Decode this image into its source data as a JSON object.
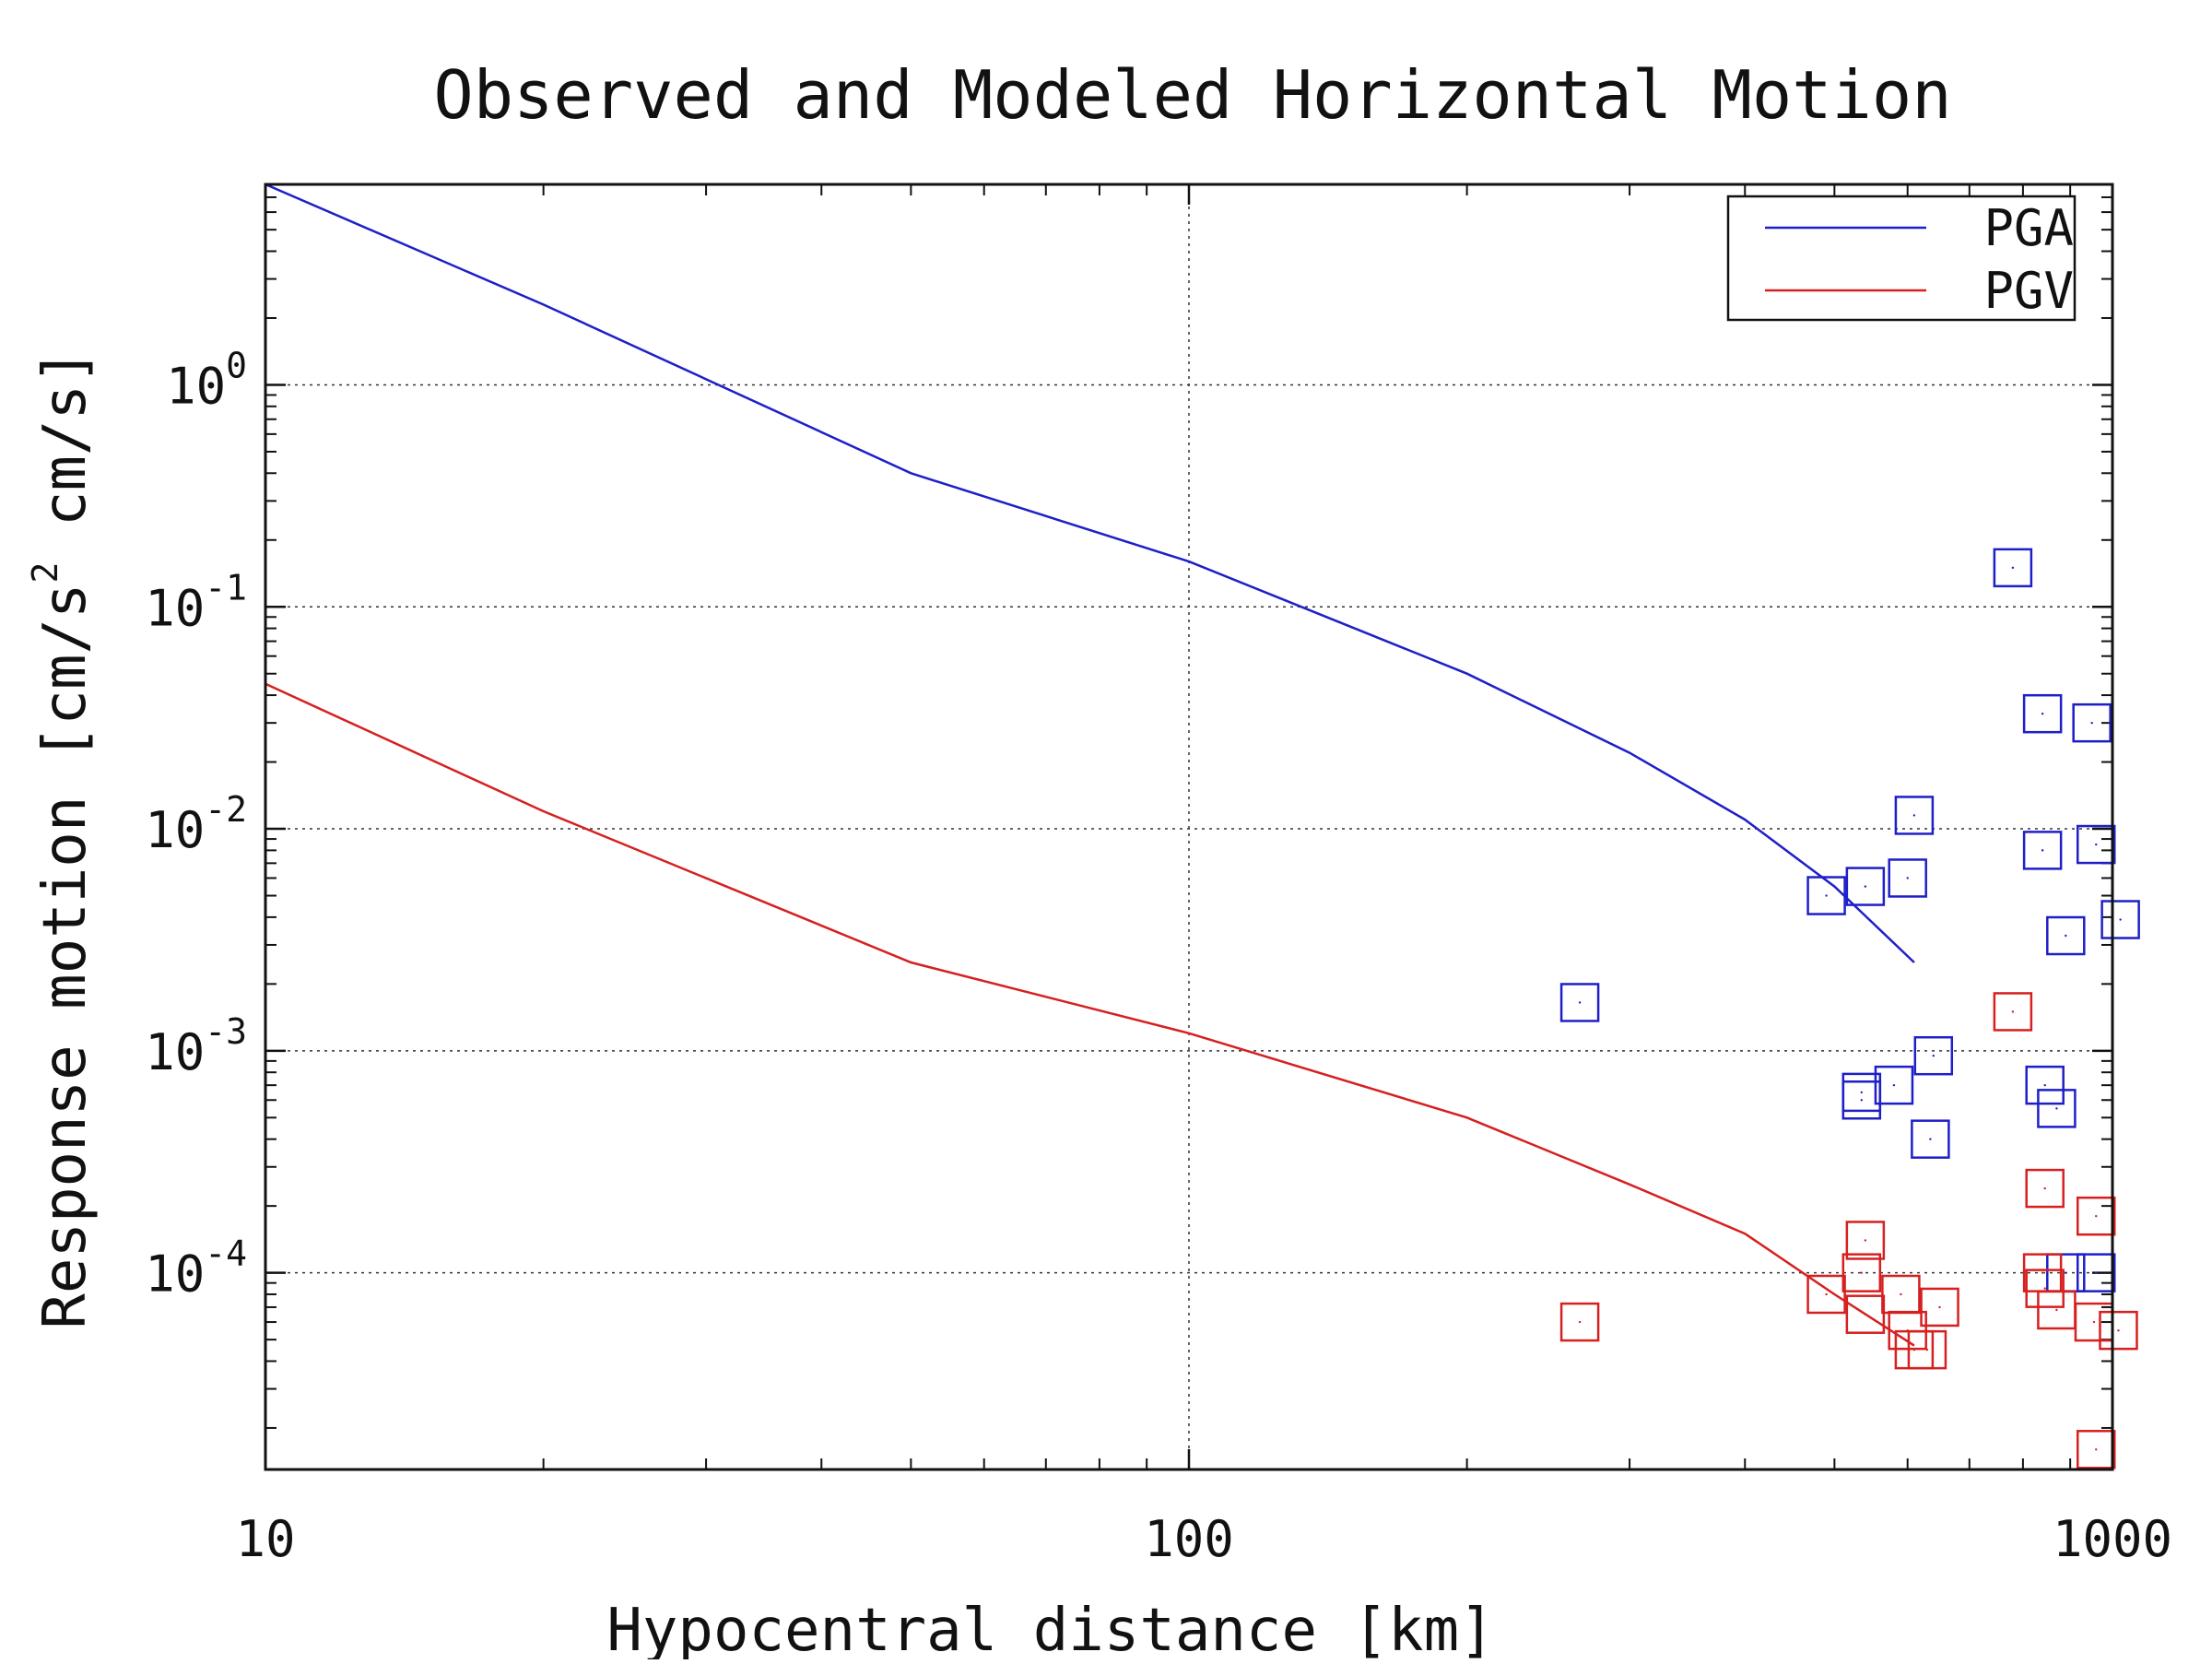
{
  "chart_data": {
    "type": "scatter",
    "title": "Observed and Modeled Horizontal Motion",
    "xlabel": "Hypocentral distance [km]",
    "ylabel_parts": {
      "before": "Response motion [cm/s",
      "superscript": "2",
      "after": " cm/s]"
    },
    "x_scale": "log",
    "y_scale": "log",
    "xlim": [
      10,
      1000
    ],
    "ylim": [
      1.3e-05,
      8
    ],
    "x_ticks": [
      {
        "value": 10,
        "label": "10"
      },
      {
        "value": 100,
        "label": "100"
      },
      {
        "value": 1000,
        "label": "1000"
      }
    ],
    "y_ticks": [
      {
        "value": 1,
        "base": "10",
        "exp": "0"
      },
      {
        "value": 0.1,
        "base": "10",
        "exp": "-1"
      },
      {
        "value": 0.01,
        "base": "10",
        "exp": "-2"
      },
      {
        "value": 0.001,
        "base": "10",
        "exp": "-3"
      },
      {
        "value": 0.0001,
        "base": "10",
        "exp": "-4"
      }
    ],
    "grid": true,
    "legend_position": "top-right",
    "series": [
      {
        "name": "PGA",
        "kind": "model-line",
        "color": "#1f1fc8",
        "points": [
          [
            10,
            8.0
          ],
          [
            20,
            2.3
          ],
          [
            50,
            0.4
          ],
          [
            100,
            0.16
          ],
          [
            200,
            0.05
          ],
          [
            300,
            0.022
          ],
          [
            400,
            0.011
          ],
          [
            500,
            0.0055
          ],
          [
            610,
            0.0025
          ]
        ]
      },
      {
        "name": "PGV",
        "kind": "model-line",
        "color": "#d62020",
        "points": [
          [
            10,
            0.045
          ],
          [
            20,
            0.012
          ],
          [
            50,
            0.0025
          ],
          [
            100,
            0.0012
          ],
          [
            200,
            0.0005
          ],
          [
            300,
            0.00025
          ],
          [
            400,
            0.00015
          ],
          [
            500,
            8e-05
          ],
          [
            610,
            4.7e-05
          ]
        ]
      },
      {
        "name": "",
        "kind": "observed",
        "color": "#1f1fc8",
        "marker": "square",
        "points": [
          [
            265,
            0.00165
          ],
          [
            490,
            0.005
          ],
          [
            540,
            0.0055
          ],
          [
            600,
            0.006
          ],
          [
            610,
            0.0115
          ],
          [
            780,
            0.15
          ],
          [
            840,
            0.033
          ],
          [
            840,
            0.008
          ],
          [
            950,
            0.03
          ],
          [
            960,
            0.0085
          ],
          [
            890,
            0.0033
          ],
          [
            1020,
            0.0039
          ],
          [
            535,
            0.00065
          ],
          [
            535,
            0.0006
          ],
          [
            580,
            0.0007
          ],
          [
            640,
            0.00095
          ],
          [
            635,
            0.0004
          ],
          [
            845,
            0.0007
          ],
          [
            870,
            0.00055
          ],
          [
            890,
            0.0001
          ],
          [
            960,
            0.0001
          ]
        ]
      },
      {
        "name": "",
        "kind": "observed",
        "color": "#d62020",
        "marker": "square",
        "points": [
          [
            265,
            6e-05
          ],
          [
            490,
            8e-05
          ],
          [
            540,
            0.00014
          ],
          [
            535,
            0.0001
          ],
          [
            540,
            6.5e-05
          ],
          [
            590,
            8e-05
          ],
          [
            600,
            5.5e-05
          ],
          [
            610,
            4.5e-05
          ],
          [
            630,
            4.5e-05
          ],
          [
            650,
            7e-05
          ],
          [
            780,
            0.0015
          ],
          [
            845,
            0.00024
          ],
          [
            840,
            0.0001
          ],
          [
            845,
            8.5e-05
          ],
          [
            870,
            6.8e-05
          ],
          [
            960,
            0.00018
          ],
          [
            955,
            6e-05
          ],
          [
            1015,
            5.5e-05
          ],
          [
            960,
            1.6e-05
          ]
        ]
      }
    ]
  }
}
